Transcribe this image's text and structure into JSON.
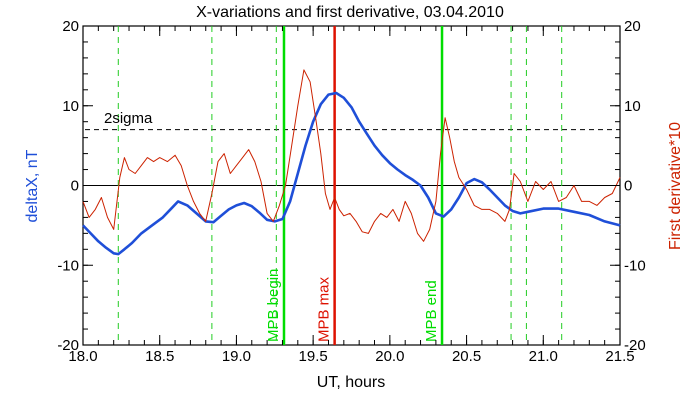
{
  "chart_data": {
    "type": "line",
    "title": "X-variations and first derivative, 03.04.2010",
    "xlabel": "UT, hours",
    "ylabel_left": "deltaX, nT",
    "ylabel_right": "First derivative*10",
    "xlim": [
      18.0,
      21.5
    ],
    "ylim_left": [
      -20,
      20
    ],
    "ylim_right": [
      -20,
      20
    ],
    "x_ticks": [
      "18.0",
      "18.5",
      "19.0",
      "19.5",
      "20.0",
      "20.5",
      "21.0",
      "21.5"
    ],
    "y_ticks_left": [
      "-20",
      "-10",
      "0",
      "10",
      "20"
    ],
    "y_ticks_right": [
      "-20",
      "-10",
      "0",
      "10",
      "20"
    ],
    "colors": {
      "deltaX": "#1f4fd8",
      "derivative": "#cc2200",
      "mpb_lines": "#00dd00",
      "dashed_markers": "#22cc22",
      "mpb_max": "#dd1100",
      "sigma": "#000000",
      "left_label": "#1f4fd8",
      "right_label": "#cc2200"
    },
    "sigma_level": {
      "label": "2sigma",
      "value": 7.0
    },
    "zero_line": 0,
    "vertical_markers": [
      {
        "x": 19.31,
        "label": "MPB begin",
        "style": "solid-green"
      },
      {
        "x": 19.64,
        "label": "MPB max",
        "style": "solid-red"
      },
      {
        "x": 20.34,
        "label": "MPB end",
        "style": "solid-green"
      }
    ],
    "dashed_markers_x": [
      18.23,
      18.84,
      19.26,
      20.79,
      20.89,
      21.12
    ],
    "series": [
      {
        "axis": "left",
        "x": [
          18.0,
          18.05,
          18.1,
          18.15,
          18.2,
          18.23,
          18.27,
          18.32,
          18.38,
          18.45,
          18.52,
          18.58,
          18.62,
          18.68,
          18.74,
          18.8,
          18.85,
          18.9,
          18.95,
          19.0,
          19.05,
          19.1,
          19.15,
          19.2,
          19.25,
          19.3,
          19.35,
          19.4,
          19.45,
          19.5,
          19.55,
          19.6,
          19.65,
          19.7,
          19.75,
          19.8,
          19.85,
          19.9,
          19.95,
          20.0,
          20.05,
          20.1,
          20.15,
          20.2,
          20.25,
          20.3,
          20.35,
          20.4,
          20.45,
          20.5,
          20.55,
          20.6,
          20.65,
          20.7,
          20.75,
          20.8,
          20.85,
          20.9,
          21.0,
          21.1,
          21.2,
          21.3,
          21.4,
          21.5
        ],
        "values": [
          -5.0,
          -6.0,
          -7.0,
          -7.8,
          -8.5,
          -8.6,
          -8.0,
          -7.2,
          -6.0,
          -5.0,
          -4.0,
          -2.8,
          -2.0,
          -2.5,
          -3.5,
          -4.5,
          -4.6,
          -3.8,
          -3.0,
          -2.5,
          -2.2,
          -2.6,
          -3.4,
          -4.3,
          -4.5,
          -4.2,
          -2.0,
          1.5,
          5.0,
          8.0,
          10.2,
          11.4,
          11.6,
          11.0,
          9.8,
          8.0,
          6.5,
          5.0,
          3.8,
          2.8,
          2.0,
          1.3,
          0.7,
          0.0,
          -1.5,
          -3.5,
          -3.9,
          -3.0,
          -1.5,
          0.3,
          0.8,
          0.4,
          -0.5,
          -1.5,
          -2.5,
          -3.2,
          -3.5,
          -3.3,
          -2.9,
          -2.9,
          -3.3,
          -3.7,
          -4.5,
          -5.0
        ]
      },
      {
        "axis": "right",
        "x": [
          18.0,
          18.04,
          18.08,
          18.12,
          18.16,
          18.2,
          18.24,
          18.27,
          18.3,
          18.34,
          18.38,
          18.42,
          18.46,
          18.5,
          18.55,
          18.6,
          18.64,
          18.68,
          18.72,
          18.76,
          18.8,
          18.84,
          18.88,
          18.92,
          18.96,
          19.0,
          19.04,
          19.08,
          19.12,
          19.16,
          19.2,
          19.24,
          19.28,
          19.32,
          19.36,
          19.4,
          19.44,
          19.48,
          19.52,
          19.55,
          19.58,
          19.61,
          19.64,
          19.67,
          19.7,
          19.74,
          19.78,
          19.82,
          19.86,
          19.9,
          19.94,
          19.98,
          20.02,
          20.06,
          20.1,
          20.14,
          20.18,
          20.22,
          20.26,
          20.3,
          20.33,
          20.36,
          20.39,
          20.42,
          20.45,
          20.5,
          20.55,
          20.6,
          20.65,
          20.7,
          20.75,
          20.78,
          20.81,
          20.85,
          20.9,
          20.95,
          21.0,
          21.05,
          21.1,
          21.15,
          21.2,
          21.25,
          21.3,
          21.35,
          21.4,
          21.45,
          21.5
        ],
        "values": [
          -2.0,
          -4.0,
          -3.0,
          -1.5,
          -4.0,
          -5.5,
          1.0,
          3.5,
          2.0,
          1.5,
          2.5,
          3.5,
          3.0,
          3.5,
          3.0,
          3.8,
          2.5,
          0.0,
          -2.0,
          -3.5,
          -4.5,
          -1.0,
          3.0,
          4.0,
          1.5,
          2.5,
          3.5,
          4.5,
          3.0,
          0.5,
          -3.5,
          -4.5,
          -2.5,
          0.0,
          5.0,
          10.0,
          14.5,
          13.0,
          8.0,
          4.0,
          -1.0,
          -3.0,
          -1.5,
          -3.0,
          -3.8,
          -3.5,
          -4.5,
          -5.8,
          -6.0,
          -4.5,
          -3.5,
          -4.0,
          -3.0,
          -4.5,
          -2.0,
          -3.5,
          -6.0,
          -7.0,
          -5.5,
          -2.0,
          4.0,
          8.5,
          6.0,
          3.0,
          1.0,
          -0.5,
          -2.5,
          -3.0,
          -3.0,
          -3.5,
          -4.5,
          -3.0,
          1.5,
          0.5,
          -2.0,
          0.5,
          -0.5,
          0.5,
          -2.0,
          -1.5,
          0.0,
          -2.0,
          -2.0,
          -2.5,
          -1.5,
          -1.0,
          1.0
        ]
      }
    ]
  }
}
